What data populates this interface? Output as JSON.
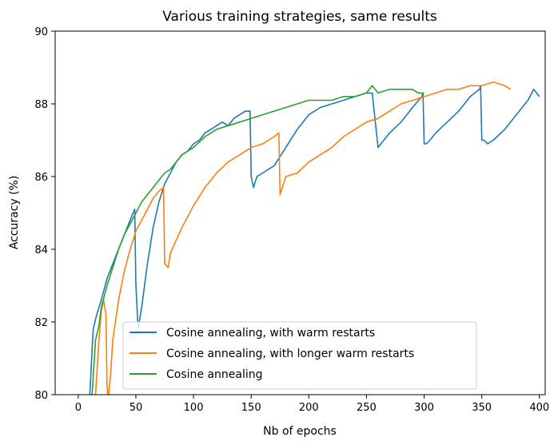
{
  "chart_data": {
    "type": "line",
    "title": "Various training strategies, same results",
    "xlabel": "Nb of epochs",
    "ylabel": "Accuracy (%)",
    "xlim": [
      -20,
      405
    ],
    "ylim": [
      80,
      90
    ],
    "xticks": [
      0,
      50,
      100,
      150,
      200,
      250,
      300,
      350,
      400
    ],
    "yticks": [
      80,
      82,
      84,
      86,
      88,
      90
    ],
    "grid": false,
    "legend_position": "lower-center",
    "series": [
      {
        "name": "Cosine annealing, with warm restarts",
        "color": "#1f77b4",
        "x": [
          10,
          13,
          16,
          20,
          25,
          30,
          35,
          40,
          45,
          49,
          50,
          52,
          55,
          60,
          65,
          70,
          75,
          80,
          85,
          90,
          95,
          100,
          105,
          110,
          115,
          120,
          125,
          130,
          135,
          140,
          145,
          149,
          150,
          152,
          155,
          160,
          170,
          180,
          190,
          200,
          210,
          220,
          230,
          240,
          250,
          255,
          260,
          270,
          280,
          290,
          298,
          299,
          300,
          302,
          305,
          310,
          320,
          330,
          340,
          348,
          349,
          350,
          352,
          355,
          360,
          370,
          380,
          390,
          395,
          400
        ],
        "y": [
          80.0,
          81.8,
          82.2,
          82.6,
          83.2,
          83.6,
          84.0,
          84.4,
          84.8,
          85.1,
          83.0,
          81.8,
          82.4,
          83.6,
          84.6,
          85.3,
          85.8,
          86.1,
          86.4,
          86.6,
          86.7,
          86.9,
          87.0,
          87.2,
          87.3,
          87.4,
          87.5,
          87.4,
          87.6,
          87.7,
          87.8,
          87.8,
          86.0,
          85.7,
          86.0,
          86.1,
          86.3,
          86.8,
          87.3,
          87.7,
          87.9,
          88.0,
          88.1,
          88.2,
          88.3,
          88.3,
          86.8,
          87.2,
          87.5,
          87.9,
          88.2,
          88.3,
          86.9,
          86.9,
          87.0,
          87.2,
          87.5,
          87.8,
          88.2,
          88.4,
          88.5,
          87.0,
          87.0,
          86.9,
          87.0,
          87.3,
          87.7,
          88.1,
          88.4,
          88.2
        ]
      },
      {
        "name": "Cosine annealing, with longer warm restarts",
        "color": "#ff7f0e",
        "x": [
          15,
          18,
          20,
          22,
          24,
          25,
          26,
          28,
          30,
          35,
          40,
          45,
          50,
          55,
          60,
          65,
          70,
          74,
          75,
          78,
          80,
          90,
          100,
          110,
          120,
          130,
          140,
          150,
          160,
          170,
          174,
          175,
          178,
          180,
          190,
          200,
          210,
          220,
          230,
          240,
          250,
          260,
          270,
          280,
          290,
          300,
          310,
          320,
          330,
          340,
          350,
          360,
          370,
          375
        ],
        "y": [
          80.0,
          81.5,
          82.3,
          82.6,
          82.2,
          80.2,
          79.9,
          80.5,
          81.5,
          82.6,
          83.4,
          84.0,
          84.5,
          84.8,
          85.1,
          85.4,
          85.6,
          85.7,
          83.6,
          83.5,
          83.9,
          84.6,
          85.2,
          85.7,
          86.1,
          86.4,
          86.6,
          86.8,
          86.9,
          87.1,
          87.2,
          85.5,
          85.8,
          86.0,
          86.1,
          86.4,
          86.6,
          86.8,
          87.1,
          87.3,
          87.5,
          87.6,
          87.8,
          88.0,
          88.1,
          88.2,
          88.3,
          88.4,
          88.4,
          88.5,
          88.5,
          88.6,
          88.5,
          88.4
        ]
      },
      {
        "name": "Cosine annealing",
        "color": "#2ca02c",
        "x": [
          12,
          15,
          18,
          20,
          25,
          30,
          35,
          40,
          45,
          50,
          55,
          60,
          65,
          70,
          75,
          80,
          90,
          100,
          110,
          120,
          130,
          140,
          150,
          160,
          170,
          180,
          190,
          200,
          210,
          220,
          230,
          240,
          250,
          255,
          260,
          270,
          280,
          290,
          295,
          300
        ],
        "y": [
          80.0,
          81.5,
          81.9,
          82.4,
          83.0,
          83.5,
          84.0,
          84.4,
          84.7,
          85.0,
          85.3,
          85.5,
          85.7,
          85.9,
          86.1,
          86.2,
          86.6,
          86.8,
          87.1,
          87.3,
          87.4,
          87.5,
          87.6,
          87.7,
          87.8,
          87.9,
          88.0,
          88.1,
          88.1,
          88.1,
          88.2,
          88.2,
          88.3,
          88.5,
          88.3,
          88.4,
          88.4,
          88.4,
          88.3,
          88.3
        ]
      }
    ]
  }
}
